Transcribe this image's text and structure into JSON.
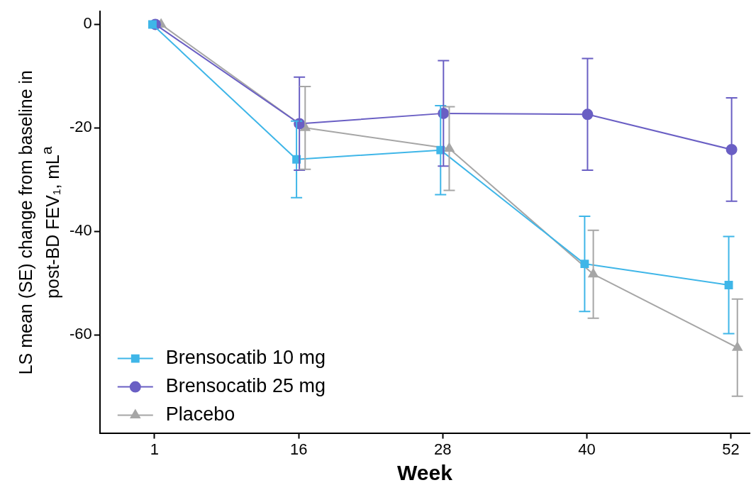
{
  "chart_data": {
    "type": "line",
    "xlabel": "Week",
    "ylabel": "LS mean (SE) change from baseline in post-BD FEV₁, mL$^{a}$",
    "categories": [
      "1",
      "16",
      "28",
      "40",
      "52"
    ],
    "ylim": [
      -79,
      2.5
    ],
    "yticks": [
      0,
      -20,
      -40,
      -60
    ],
    "grid": false,
    "legend": "bottom left",
    "line_style": "solid",
    "series": [
      {
        "name": "Brensocatib 10 mg",
        "color": "#3fb6e8",
        "marker": "square",
        "values": [
          0,
          -26.1,
          -24.3,
          -46.3,
          -50.4
        ],
        "errors": [
          null,
          7.4,
          8.6,
          9.2,
          9.4
        ]
      },
      {
        "name": "Brensocatib 25 mg",
        "color": "#6a5fc4",
        "marker": "circle",
        "values": [
          0,
          -19.2,
          -17.2,
          -17.4,
          -24.2
        ],
        "errors": [
          null,
          9,
          10.2,
          10.8,
          10
        ]
      },
      {
        "name": "Placebo",
        "color": "#a6a6a6",
        "marker": "triangle",
        "values": [
          0,
          -20,
          -24,
          -48.3,
          -62.5
        ],
        "errors": [
          null,
          8,
          8.1,
          8.5,
          9.4
        ]
      }
    ]
  }
}
